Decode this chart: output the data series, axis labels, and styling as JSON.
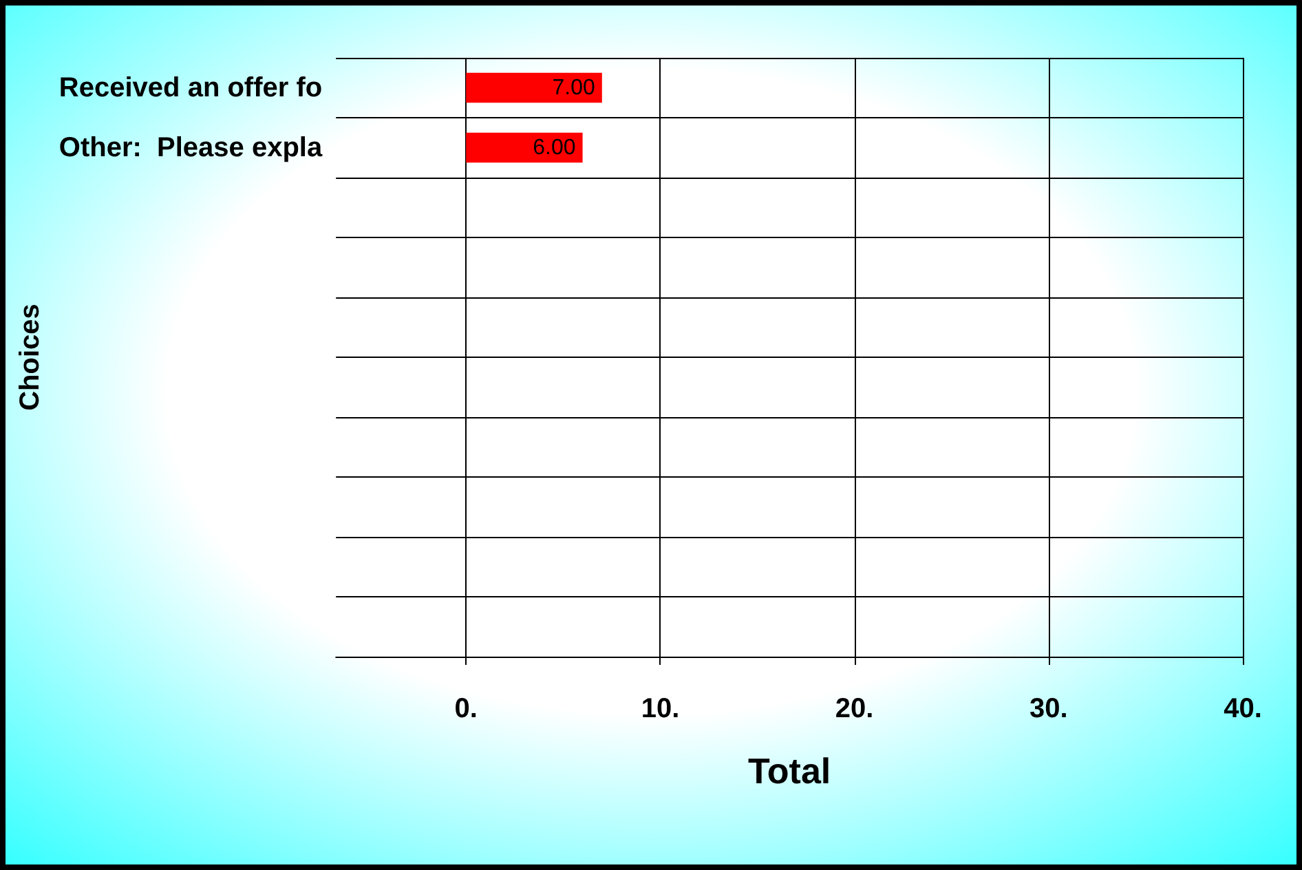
{
  "chart_data": {
    "type": "bar",
    "orientation": "horizontal",
    "categories": [
      "Received an offer fo",
      "Other:  Please expla",
      null,
      null,
      null,
      null,
      null,
      null,
      null,
      null
    ],
    "values": [
      7,
      6,
      null,
      null,
      null,
      null,
      null,
      null,
      null,
      null
    ],
    "value_labels": [
      "7.00",
      "6.00",
      null,
      null,
      null,
      null,
      null,
      null,
      null,
      null
    ],
    "color": "#ff0000",
    "xlim": [
      -6.7,
      40
    ],
    "xticks": [
      {
        "value": 0,
        "label": "0."
      },
      {
        "value": 10,
        "label": "10."
      },
      {
        "value": 20,
        "label": "20."
      },
      {
        "value": 30,
        "label": "30."
      },
      {
        "value": 40,
        "label": "40."
      }
    ],
    "xlabel": "Total",
    "ylabel": "Choices",
    "grid": true
  }
}
